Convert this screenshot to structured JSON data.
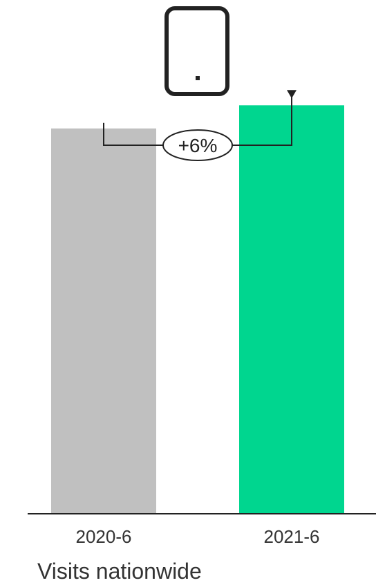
{
  "device": {
    "icon": "smartphone-icon"
  },
  "chart_data": {
    "type": "bar",
    "categories": [
      "2020-6",
      "2021-6"
    ],
    "values": [
      100,
      106
    ],
    "colors": [
      "#c0c0c0",
      "#00d68f"
    ],
    "ylim": [
      0,
      110
    ],
    "grid": false,
    "annotation": {
      "label": "+6%",
      "from": "2020-6",
      "to": "2021-6"
    }
  },
  "caption": "Visits nationwide"
}
